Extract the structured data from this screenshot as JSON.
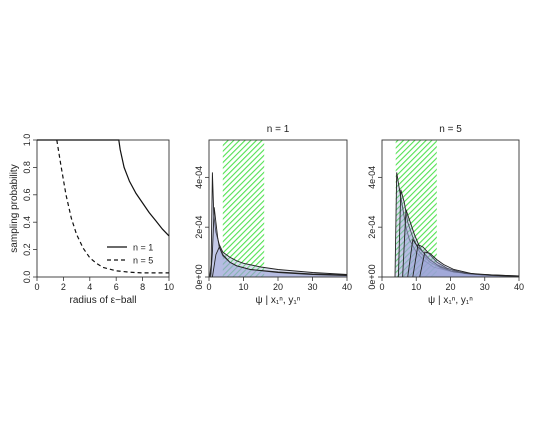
{
  "figure": {
    "background": "#ffffff"
  },
  "chart_data": [
    {
      "type": "line",
      "title": "",
      "xlabel": "radius of ε−ball",
      "ylabel": "sampling probability",
      "xlim": [
        0,
        10
      ],
      "ylim": [
        0,
        1
      ],
      "xticks": [
        "0",
        "2",
        "4",
        "6",
        "8",
        "10"
      ],
      "yticks": [
        "0.0",
        "0.2",
        "0.4",
        "0.6",
        "0.8",
        "1.0"
      ],
      "legend_position": "bottom-right",
      "series": [
        {
          "name": "n = 1",
          "style": "solid",
          "x": [
            0,
            1,
            2,
            3,
            4,
            5,
            6,
            6.2,
            6.3,
            6.6,
            7,
            7.5,
            8,
            8.5,
            9,
            9.5,
            10
          ],
          "y": [
            1.0,
            1.0,
            1.0,
            1.0,
            1.0,
            1.0,
            1.0,
            1.0,
            0.93,
            0.8,
            0.7,
            0.61,
            0.54,
            0.47,
            0.41,
            0.35,
            0.3
          ]
        },
        {
          "name": "n = 5",
          "style": "dashed",
          "x": [
            1.5,
            1.8,
            2.2,
            2.6,
            3,
            3.5,
            4,
            4.5,
            5,
            6,
            7,
            8,
            9,
            10
          ],
          "y": [
            1.0,
            0.82,
            0.6,
            0.43,
            0.31,
            0.21,
            0.14,
            0.1,
            0.07,
            0.045,
            0.035,
            0.03,
            0.03,
            0.03
          ]
        }
      ]
    },
    {
      "type": "area",
      "title": "n = 1",
      "xlabel": "ψ | x₁ⁿ, y₁ⁿ",
      "ylabel": "",
      "xlim": [
        0,
        40
      ],
      "ylim": [
        0,
        0.00055
      ],
      "xticks": [
        "0",
        "10",
        "20",
        "30",
        "40"
      ],
      "yticks": [
        "0e+00",
        "2e-04",
        "4e-04"
      ],
      "yticks_values": [
        0,
        0.0002,
        0.0004
      ],
      "highlight_band": {
        "x": [
          4,
          16
        ],
        "color": "#33dd33"
      },
      "fill_color": "#9aa2d6",
      "curves": [
        {
          "x": [
            0.2,
            0.6,
            1.0,
            1.4,
            2,
            3,
            4,
            6,
            8,
            10,
            15,
            20,
            30,
            40
          ],
          "y": [
            0,
            5e-05,
            0.00042,
            0.00025,
            0.00018,
            0.00013,
            0.0001,
            8e-05,
            6.5e-05,
            5.5e-05,
            4e-05,
            3e-05,
            1.8e-05,
            1e-05
          ]
        },
        {
          "x": [
            0.5,
            1,
            1.5,
            2,
            2.5,
            3,
            4,
            6,
            8,
            12,
            20,
            30,
            40
          ],
          "y": [
            0,
            0.0001,
            0.00028,
            0.00022,
            0.00016,
            0.00012,
            8.5e-05,
            6e-05,
            4.5e-05,
            3e-05,
            2e-05,
            1.2e-05,
            8e-06
          ]
        },
        {
          "x": [
            1,
            2,
            3,
            4,
            6,
            8,
            12,
            20,
            30,
            40
          ],
          "y": [
            0,
            9e-05,
            0.00012,
            9e-05,
            6e-05,
            4.5e-05,
            3e-05,
            1.8e-05,
            1e-05,
            6e-06
          ]
        }
      ]
    },
    {
      "type": "area",
      "title": "n = 5",
      "xlabel": "ψ | x₁ⁿ, y₁ⁿ",
      "ylabel": "",
      "xlim": [
        0,
        40
      ],
      "ylim": [
        0,
        0.00055
      ],
      "xticks": [
        "0",
        "10",
        "20",
        "30",
        "40"
      ],
      "yticks": [
        "0e+00",
        "2e-04",
        "4e-04"
      ],
      "yticks_values": [
        0,
        0.0002,
        0.0004
      ],
      "highlight_band": {
        "x": [
          4,
          16
        ],
        "color": "#33dd33"
      },
      "fill_color": "#9aa2d6",
      "curves": [
        {
          "x": [
            3.8,
            4.3,
            5,
            6,
            7,
            8,
            10,
            12,
            15,
            20,
            30,
            40
          ],
          "y": [
            0,
            0.00042,
            0.00036,
            0.00028,
            0.0002,
            0.00015,
            0.0001,
            7e-05,
            4e-05,
            2.2e-05,
            8e-06,
            3e-06
          ]
        },
        {
          "x": [
            4.8,
            5.5,
            6.5,
            7.5,
            9,
            11,
            14,
            18,
            25,
            40
          ],
          "y": [
            0,
            0.00035,
            0.0003,
            0.00022,
            0.00016,
            0.0001,
            6e-05,
            3e-05,
            1.2e-05,
            4e-06
          ]
        },
        {
          "x": [
            6,
            7,
            8,
            9.5,
            11,
            13,
            16,
            20,
            28,
            40
          ],
          "y": [
            0,
            0.00027,
            0.00023,
            0.00017,
            0.00012,
            8e-05,
            5e-05,
            2.5e-05,
            1e-05,
            4e-06
          ]
        },
        {
          "x": [
            7.5,
            9,
            10.5,
            12,
            14,
            17,
            21,
            28,
            40
          ],
          "y": [
            0,
            0.00015,
            0.00012,
            0.0001,
            7e-05,
            4e-05,
            2e-05,
            1e-05,
            3e-06
          ]
        },
        {
          "x": [
            9,
            10.5,
            12,
            14,
            16,
            19,
            24,
            32,
            40
          ],
          "y": [
            0,
            0.00013,
            0.00012,
            9e-05,
            6e-05,
            3.5e-05,
            1.5e-05,
            6e-06,
            3e-06
          ]
        },
        {
          "x": [
            11,
            12.5,
            14,
            16,
            18,
            21,
            26,
            34,
            40
          ],
          "y": [
            0,
            0.0001,
            9.5e-05,
            7e-05,
            5e-05,
            3e-05,
            1.4e-05,
            6e-06,
            3e-06
          ]
        }
      ]
    }
  ]
}
